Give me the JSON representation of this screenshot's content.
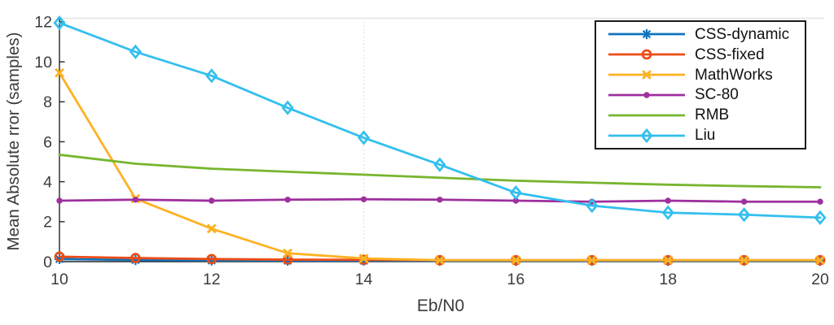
{
  "chart_data": {
    "type": "line",
    "title": "",
    "xlabel": "Eb/N0",
    "ylabel": "Mean Absolute rror (samples)",
    "x": [
      10,
      11,
      12,
      13,
      14,
      15,
      16,
      17,
      18,
      19,
      20
    ],
    "xlim": [
      10,
      20
    ],
    "ylim": [
      0,
      12.2
    ],
    "xticks": [
      10,
      12,
      14,
      16,
      18,
      20
    ],
    "yticks": [
      0,
      2,
      4,
      6,
      8,
      10,
      12
    ],
    "grid": false,
    "faint_vertical_gridline_at_x": 14,
    "legend_position": "top-right",
    "series": [
      {
        "name": "CSS-dynamic",
        "color": "#0F74BE",
        "marker": "asterisk",
        "values": [
          0.13,
          0.08,
          0.06,
          0.05,
          0.05,
          0.04,
          0.04,
          0.04,
          0.04,
          0.04,
          0.04
        ]
      },
      {
        "name": "CSS-fixed",
        "color": "#ED4C16",
        "marker": "circle-open",
        "values": [
          0.25,
          0.18,
          0.13,
          0.1,
          0.09,
          0.07,
          0.07,
          0.07,
          0.07,
          0.07,
          0.07
        ]
      },
      {
        "name": "MathWorks",
        "color": "#FDB222",
        "marker": "x",
        "values": [
          9.45,
          3.15,
          1.65,
          0.42,
          0.16,
          0.07,
          0.07,
          0.07,
          0.07,
          0.07,
          0.07
        ]
      },
      {
        "name": "SC-80",
        "color": "#9E2F9E",
        "marker": "dot",
        "values": [
          3.05,
          3.1,
          3.05,
          3.1,
          3.12,
          3.1,
          3.05,
          3.0,
          3.05,
          3.0,
          3.0
        ]
      },
      {
        "name": "RMB",
        "color": "#77B62E",
        "marker": "none",
        "values": [
          5.35,
          4.9,
          4.65,
          4.5,
          4.35,
          4.2,
          4.05,
          3.95,
          3.85,
          3.78,
          3.72
        ]
      },
      {
        "name": "Liu",
        "color": "#33BFEE",
        "marker": "diamond-open",
        "values": [
          11.95,
          10.5,
          9.3,
          7.7,
          6.2,
          4.85,
          3.45,
          2.8,
          2.45,
          2.35,
          2.2
        ]
      }
    ]
  },
  "style": {
    "axis_color": "#262626",
    "tick_label_color": "#3c3c3c",
    "top_border_color": "#e4e4e4",
    "faint_gridline_color": "#dcdcdc",
    "legend_border_color": "#1b1b1b",
    "background": "#ffffff"
  }
}
